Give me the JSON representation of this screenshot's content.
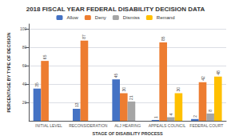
{
  "chart_data": {
    "type": "bar",
    "title": "2018 FISCAL YEAR FEDERAL DISABILITY DECISION DATA",
    "xlabel": "STAGE OF DISABILITY PROCESS",
    "ylabel": "PERCENTAGE BY TYPE OF DECISION",
    "categories": [
      "INITIAL LEVEL",
      "RECONSIDERATION",
      "ALJ HEARING",
      "APPEALS COUNCIL",
      "FEDERAL COURT"
    ],
    "series": [
      {
        "name": "Allow",
        "color": "#4472c4",
        "values": [
          35,
          13,
          45,
          1,
          2
        ],
        "value_labels": [
          "35",
          "13",
          "45",
          "1",
          "2"
        ]
      },
      {
        "name": "Deny",
        "color": "#ed7d31",
        "values": [
          65,
          87,
          30,
          85,
          42
        ],
        "value_labels": [
          "65",
          "87",
          "30",
          "85",
          "42"
        ]
      },
      {
        "name": "Dismiss",
        "color": "#a5a5a5",
        "values": [
          0,
          0,
          21,
          4,
          8
        ],
        "value_labels": [
          null,
          null,
          "21",
          "4",
          "8"
        ]
      },
      {
        "name": "Remand",
        "color": "#ffc000",
        "values": [
          0,
          0,
          0,
          30,
          48
        ],
        "value_labels": [
          null,
          null,
          null,
          "30",
          "48"
        ]
      }
    ],
    "ylim": [
      0,
      105
    ],
    "yticks": [
      20,
      40,
      60,
      80,
      100
    ],
    "grid": true,
    "legend": "top",
    "data_labels": true
  }
}
